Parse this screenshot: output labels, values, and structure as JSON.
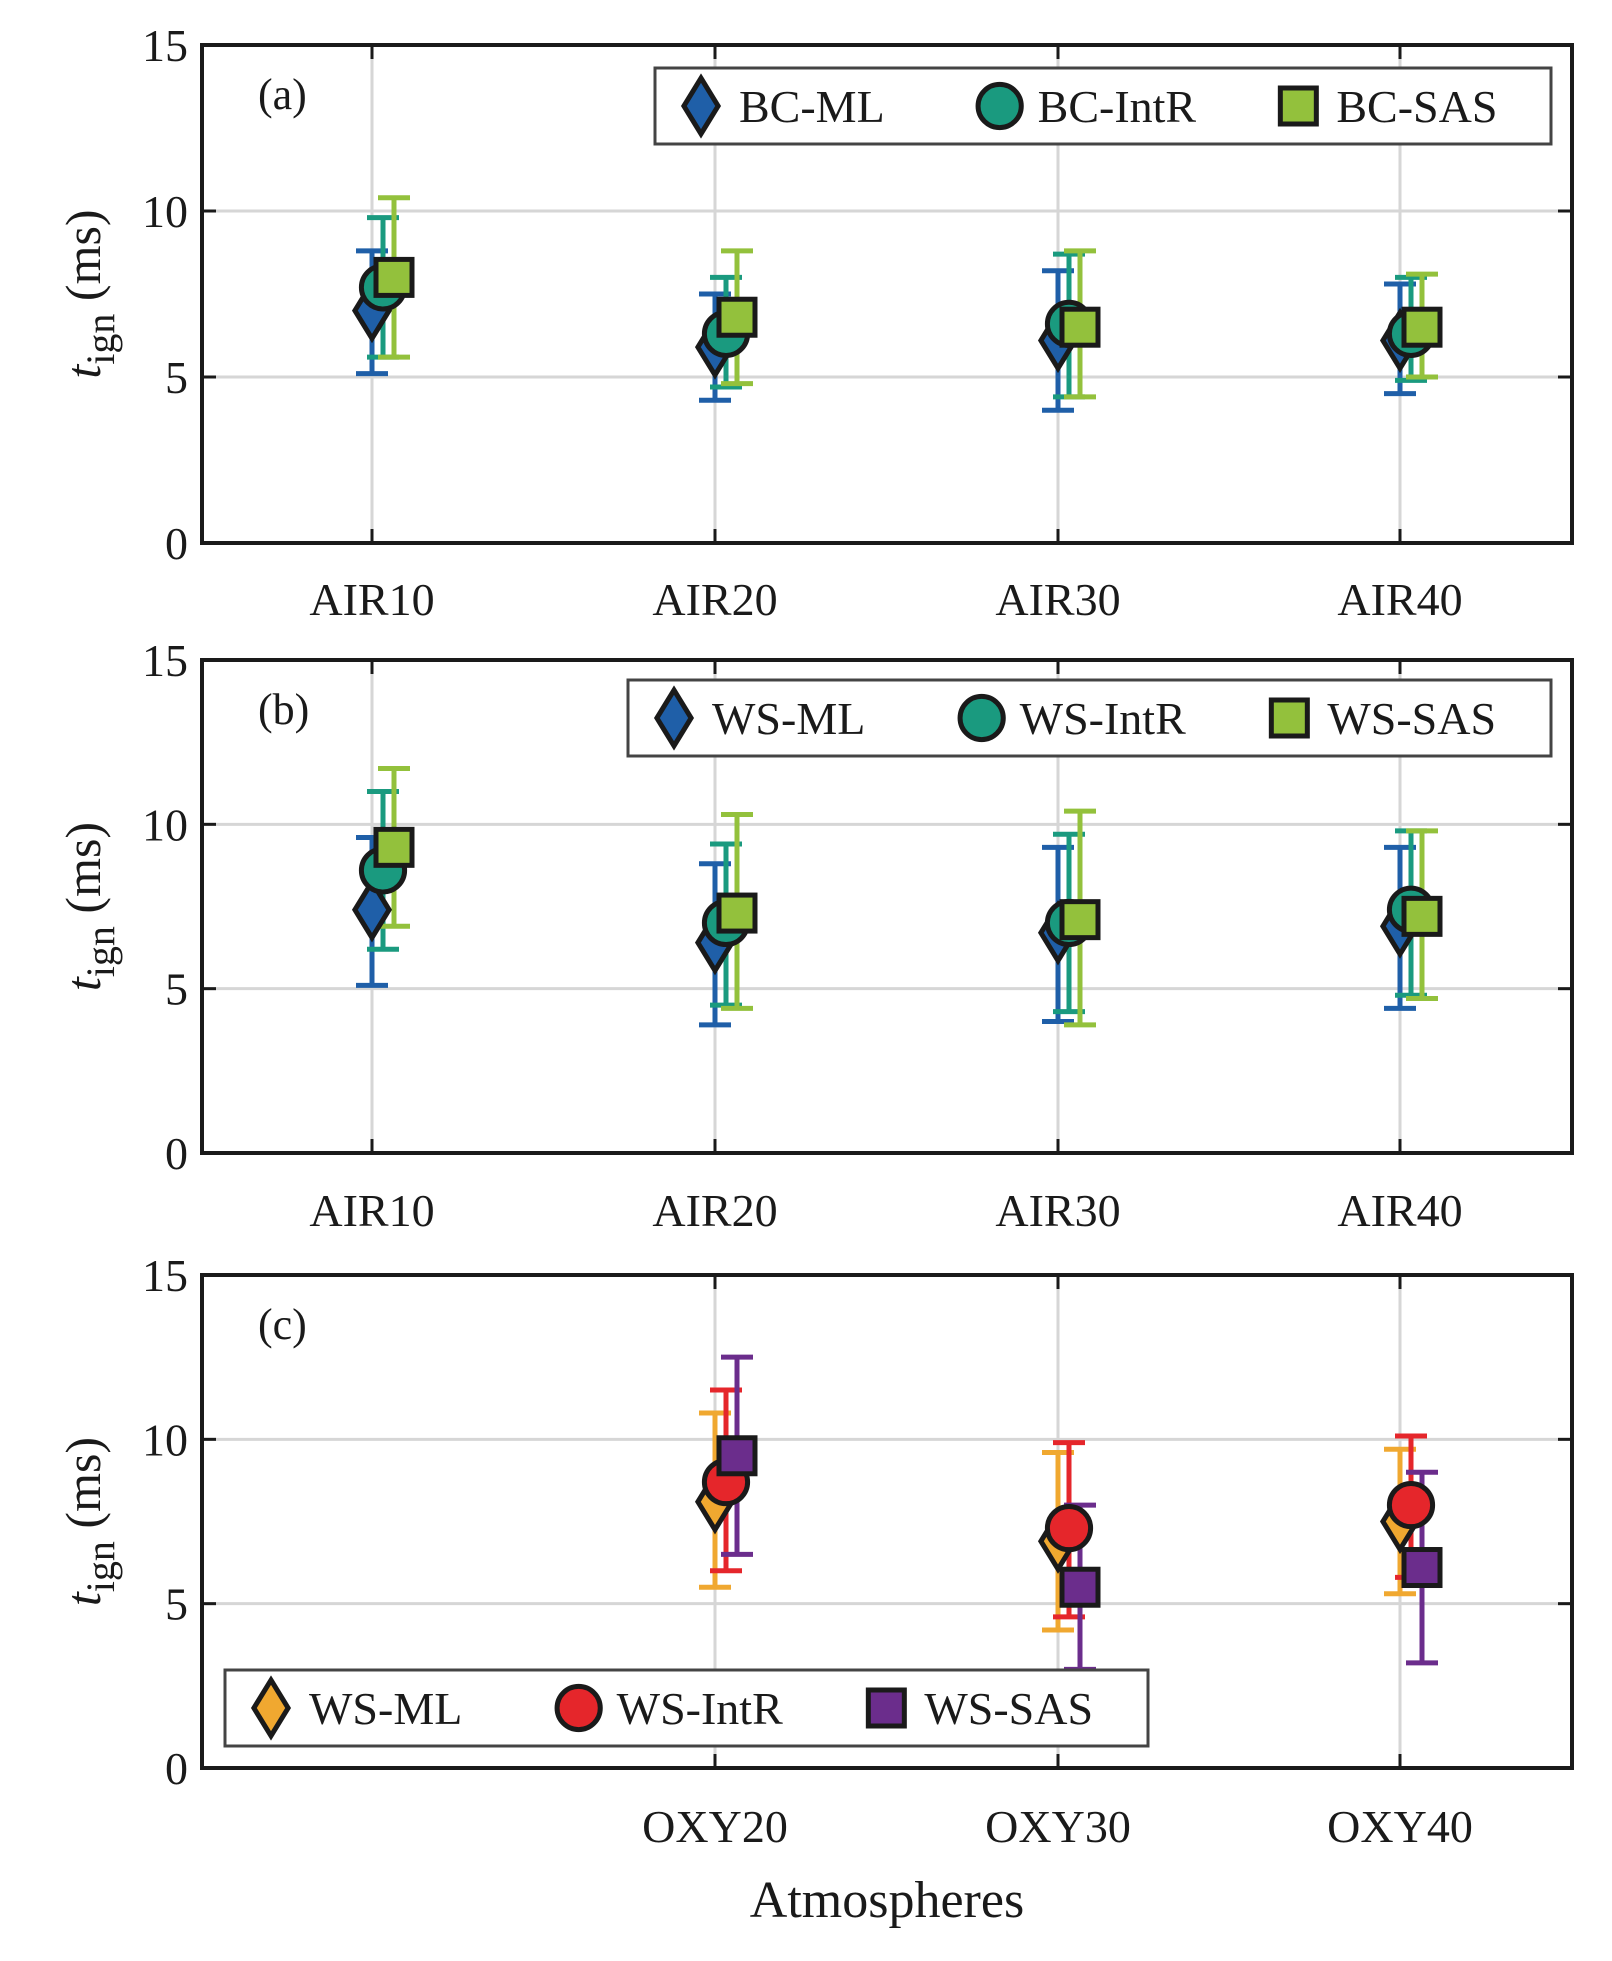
{
  "chart_data": [
    {
      "type": "scatter",
      "panel_label": "(a)",
      "categories": [
        "AIR10",
        "AIR20",
        "AIR30",
        "AIR40"
      ],
      "ylabel_main": "t",
      "ylabel_sub": "ign",
      "ylabel_unit": "(ms)",
      "xlabel": "",
      "ylim": [
        0,
        15
      ],
      "yticks": [
        "0",
        "5",
        "10",
        "15"
      ],
      "grid": true,
      "legend_position": "top-right",
      "legend_orientation": "horizontal",
      "series": [
        {
          "name": "BC-ML",
          "marker": "diamond",
          "color": "#1f5fa8",
          "values": [
            7.0,
            5.9,
            6.1,
            6.1
          ],
          "lower": [
            5.1,
            4.3,
            4.0,
            4.5
          ],
          "upper": [
            8.8,
            7.5,
            8.2,
            7.8
          ]
        },
        {
          "name": "BC-IntR",
          "marker": "circle",
          "color": "#1a9a7f",
          "values": [
            7.7,
            6.3,
            6.6,
            6.3
          ],
          "lower": [
            5.6,
            4.7,
            4.4,
            4.9
          ],
          "upper": [
            9.8,
            8.0,
            8.7,
            8.0
          ]
        },
        {
          "name": "BC-SAS",
          "marker": "square",
          "color": "#93c13c",
          "values": [
            8.0,
            6.8,
            6.5,
            6.5
          ],
          "lower": [
            5.6,
            4.8,
            4.4,
            5.0
          ],
          "upper": [
            10.4,
            8.8,
            8.8,
            8.1
          ]
        }
      ]
    },
    {
      "type": "scatter",
      "panel_label": "(b)",
      "categories": [
        "AIR10",
        "AIR20",
        "AIR30",
        "AIR40"
      ],
      "ylabel_main": "t",
      "ylabel_sub": "ign",
      "ylabel_unit": "(ms)",
      "xlabel": "",
      "ylim": [
        0,
        15
      ],
      "yticks": [
        "0",
        "5",
        "10",
        "15"
      ],
      "grid": true,
      "legend_position": "top-right",
      "legend_orientation": "horizontal",
      "series": [
        {
          "name": "WS-ML",
          "marker": "diamond",
          "color": "#1f5fa8",
          "values": [
            7.4,
            6.4,
            6.7,
            6.9
          ],
          "lower": [
            5.1,
            3.9,
            4.0,
            4.4
          ],
          "upper": [
            9.6,
            8.8,
            9.3,
            9.3
          ]
        },
        {
          "name": "WS-IntR",
          "marker": "circle",
          "color": "#1a9a7f",
          "values": [
            8.6,
            7.0,
            7.0,
            7.4
          ],
          "lower": [
            6.2,
            4.5,
            4.3,
            4.8
          ],
          "upper": [
            11.0,
            9.4,
            9.7,
            9.8
          ]
        },
        {
          "name": "WS-SAS",
          "marker": "square",
          "color": "#93c13c",
          "values": [
            9.3,
            7.3,
            7.1,
            7.2
          ],
          "lower": [
            6.9,
            4.4,
            3.9,
            4.7
          ],
          "upper": [
            11.7,
            10.3,
            10.4,
            9.8
          ]
        }
      ]
    },
    {
      "type": "scatter",
      "panel_label": "(c)",
      "categories": [
        "",
        "OXY20",
        "OXY30",
        "OXY40"
      ],
      "ylabel_main": "t",
      "ylabel_sub": "ign",
      "ylabel_unit": "(ms)",
      "xlabel": "Atmospheres",
      "ylim": [
        0,
        15
      ],
      "yticks": [
        "0",
        "5",
        "10",
        "15"
      ],
      "grid": true,
      "legend_position": "bottom-left",
      "legend_orientation": "horizontal",
      "series": [
        {
          "name": "WS-ML",
          "marker": "diamond",
          "color": "#f0a830",
          "values": [
            null,
            8.1,
            6.9,
            7.5
          ],
          "lower": [
            null,
            5.5,
            4.2,
            5.3
          ],
          "upper": [
            null,
            10.8,
            9.6,
            9.7
          ]
        },
        {
          "name": "WS-IntR",
          "marker": "circle",
          "color": "#e5262b",
          "values": [
            null,
            8.7,
            7.3,
            8.0
          ],
          "lower": [
            null,
            6.0,
            4.6,
            5.8
          ],
          "upper": [
            null,
            11.5,
            9.9,
            10.1
          ]
        },
        {
          "name": "WS-SAS",
          "marker": "square",
          "color": "#6b2d8c",
          "values": [
            null,
            9.5,
            5.5,
            6.1
          ],
          "lower": [
            null,
            6.5,
            3.0,
            3.2
          ],
          "upper": [
            null,
            12.5,
            8.0,
            9.0
          ]
        }
      ]
    }
  ]
}
